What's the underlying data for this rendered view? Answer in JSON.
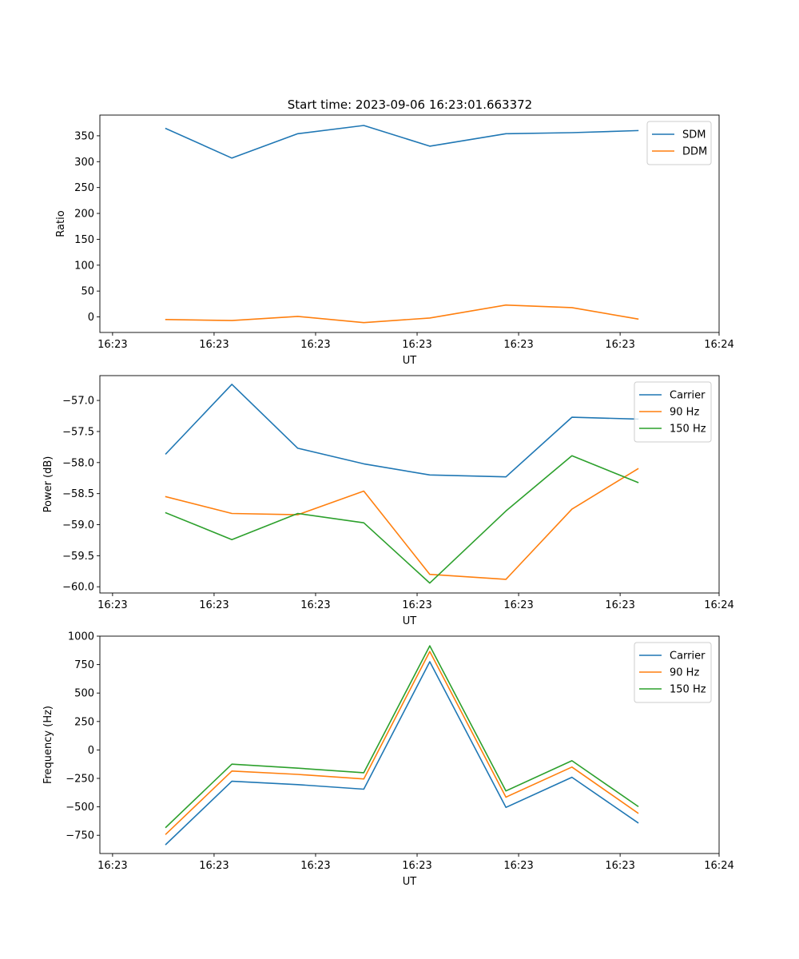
{
  "figure_title": "Start time: 2023-09-06 16:23:01.663372",
  "colors": {
    "blue": "#1f77b4",
    "orange": "#ff7f0e",
    "green": "#2ca02c"
  },
  "chart_data": [
    {
      "type": "line",
      "title": "Start time: 2023-09-06 16:23:01.663372",
      "xlabel": "UT",
      "ylabel": "Ratio",
      "x": [
        0.65,
        1.3,
        1.95,
        2.6,
        3.25,
        4.0,
        4.65,
        5.3
      ],
      "xlim": [
        0,
        6.1
      ],
      "xticks": [
        0.125,
        1.125,
        2.125,
        3.125,
        4.125,
        5.125,
        6.1
      ],
      "xticklabels": [
        "16:23",
        "16:23",
        "16:23",
        "16:23",
        "16:23",
        "16:23",
        "16:24"
      ],
      "ylim": [
        -30,
        390
      ],
      "yticks": [
        0,
        50,
        100,
        150,
        200,
        250,
        300,
        350
      ],
      "yticklabels": [
        "0",
        "50",
        "100",
        "150",
        "200",
        "250",
        "300",
        "350"
      ],
      "legend_position": "top-right",
      "series": [
        {
          "name": "SDM",
          "color": "#1f77b4",
          "values": [
            364,
            307,
            354,
            370,
            330,
            354,
            356,
            360
          ]
        },
        {
          "name": "DDM",
          "color": "#ff7f0e",
          "values": [
            -5,
            -7,
            1,
            -11,
            -2,
            23,
            18,
            -4
          ]
        }
      ]
    },
    {
      "type": "line",
      "title": "",
      "xlabel": "UT",
      "ylabel": "Power (dB)",
      "x": [
        0.65,
        1.3,
        1.95,
        2.6,
        3.25,
        4.0,
        4.65,
        5.3
      ],
      "xlim": [
        0,
        6.1
      ],
      "xticks": [
        0.125,
        1.125,
        2.125,
        3.125,
        4.125,
        5.125,
        6.1
      ],
      "xticklabels": [
        "16:23",
        "16:23",
        "16:23",
        "16:23",
        "16:23",
        "16:23",
        "16:24"
      ],
      "ylim": [
        -60.1,
        -56.6
      ],
      "yticks": [
        -60.0,
        -59.5,
        -59.0,
        -58.5,
        -58.0,
        -57.5,
        -57.0
      ],
      "yticklabels": [
        "−60.0",
        "−59.5",
        "−59.0",
        "−58.5",
        "−58.0",
        "−57.5",
        "−57.0"
      ],
      "legend_position": "top-right",
      "series": [
        {
          "name": "Carrier",
          "color": "#1f77b4",
          "values": [
            -57.86,
            -56.74,
            -57.77,
            -58.02,
            -58.2,
            -58.23,
            -57.27,
            -57.3
          ]
        },
        {
          "name": "90 Hz",
          "color": "#ff7f0e",
          "values": [
            -58.55,
            -58.82,
            -58.84,
            -58.46,
            -59.8,
            -59.88,
            -58.75,
            -58.1
          ]
        },
        {
          "name": "150 Hz",
          "color": "#2ca02c",
          "values": [
            -58.81,
            -59.24,
            -58.82,
            -58.97,
            -59.94,
            -58.78,
            -57.89,
            -58.32
          ]
        }
      ]
    },
    {
      "type": "line",
      "title": "",
      "xlabel": "UT",
      "ylabel": "Frequency (Hz)",
      "x": [
        0.65,
        1.3,
        1.95,
        2.6,
        3.25,
        4.0,
        4.65,
        5.3
      ],
      "xlim": [
        0,
        6.1
      ],
      "xticks": [
        0.125,
        1.125,
        2.125,
        3.125,
        4.125,
        5.125,
        6.1
      ],
      "xticklabels": [
        "16:23",
        "16:23",
        "16:23",
        "16:23",
        "16:23",
        "16:23",
        "16:24"
      ],
      "ylim": [
        -910,
        1000
      ],
      "yticks": [
        -750,
        -500,
        -250,
        0,
        250,
        500,
        750,
        1000
      ],
      "yticklabels": [
        "−750",
        "−500",
        "−250",
        "0",
        "250",
        "500",
        "750",
        "1000"
      ],
      "legend_position": "top-right",
      "series": [
        {
          "name": "Carrier",
          "color": "#1f77b4",
          "values": [
            -830,
            -275,
            -305,
            -345,
            775,
            -505,
            -240,
            -640
          ]
        },
        {
          "name": "90 Hz",
          "color": "#ff7f0e",
          "values": [
            -740,
            -185,
            -215,
            -255,
            865,
            -415,
            -150,
            -555
          ]
        },
        {
          "name": "150 Hz",
          "color": "#2ca02c",
          "values": [
            -680,
            -125,
            -160,
            -200,
            915,
            -360,
            -95,
            -495
          ]
        }
      ]
    }
  ]
}
